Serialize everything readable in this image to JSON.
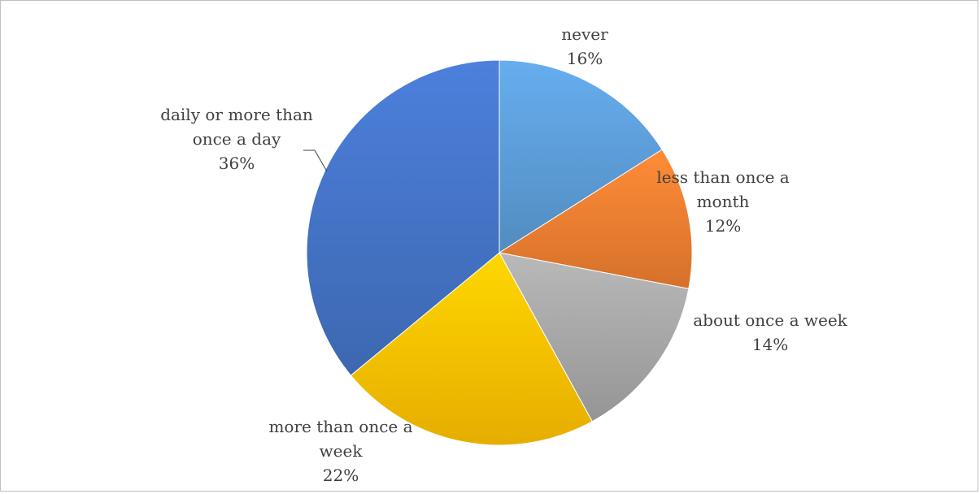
{
  "chart_data": {
    "type": "pie",
    "title": "",
    "slices": [
      {
        "label_lines": [
          "never"
        ],
        "percent_label": "16%",
        "value": 16,
        "color": "#5B9BD5"
      },
      {
        "label_lines": [
          "less than once a",
          "month"
        ],
        "percent_label": "12%",
        "value": 12,
        "color": "#ED7D31"
      },
      {
        "label_lines": [
          "about once a week"
        ],
        "percent_label": "14%",
        "value": 14,
        "color": "#A5A5A5"
      },
      {
        "label_lines": [
          "more than once a",
          "week"
        ],
        "percent_label": "22%",
        "value": 22,
        "color": "#FFC000"
      },
      {
        "label_lines": [
          "daily or more than",
          "once a day"
        ],
        "percent_label": "36%",
        "value": 36,
        "color": "#4472C4"
      }
    ],
    "legend": "none",
    "data_labels": "category name and percentage"
  }
}
